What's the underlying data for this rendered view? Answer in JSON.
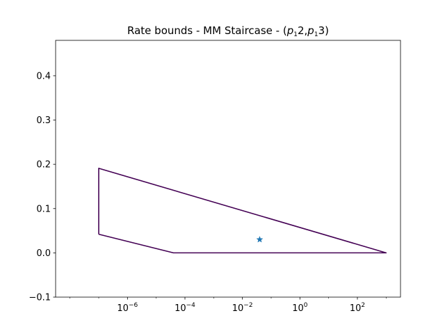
{
  "chart_data": {
    "type": "line",
    "title_main": "Rate bounds - MM Staircase - (",
    "title_p": "p",
    "title_sub1": "1",
    "title_mid1": "2,",
    "title_sub2": "1",
    "title_end": "3)",
    "xscale": "log",
    "xlim_exp": [
      -8.5,
      3.5
    ],
    "ylim": [
      -0.1,
      0.48
    ],
    "xticks": [
      {
        "exp": -6,
        "base": "10",
        "sup": "−6"
      },
      {
        "exp": -4,
        "base": "10",
        "sup": "−4"
      },
      {
        "exp": -2,
        "base": "10",
        "sup": "−2"
      },
      {
        "exp": 0,
        "base": "10",
        "sup": "0"
      },
      {
        "exp": 2,
        "base": "10",
        "sup": "2"
      }
    ],
    "yticks": [
      {
        "value": -0.1,
        "label": "−0.1"
      },
      {
        "value": 0.0,
        "label": "0.0"
      },
      {
        "value": 0.1,
        "label": "0.1"
      },
      {
        "value": 0.2,
        "label": "0.2"
      },
      {
        "value": 0.3,
        "label": "0.3"
      },
      {
        "value": 0.4,
        "label": "0.4"
      }
    ],
    "series": [
      {
        "color": "#440154",
        "x_exp": [
          -7.0,
          -7.0,
          3.0,
          -4.4,
          -7.0
        ],
        "y": [
          0.042,
          0.191,
          0.0,
          0.0,
          0.042
        ]
      }
    ],
    "points": [
      {
        "x_exp": -1.4,
        "y": 0.03,
        "marker": "star",
        "color": "#1f77b4"
      }
    ],
    "grid": false,
    "legend": "none"
  }
}
